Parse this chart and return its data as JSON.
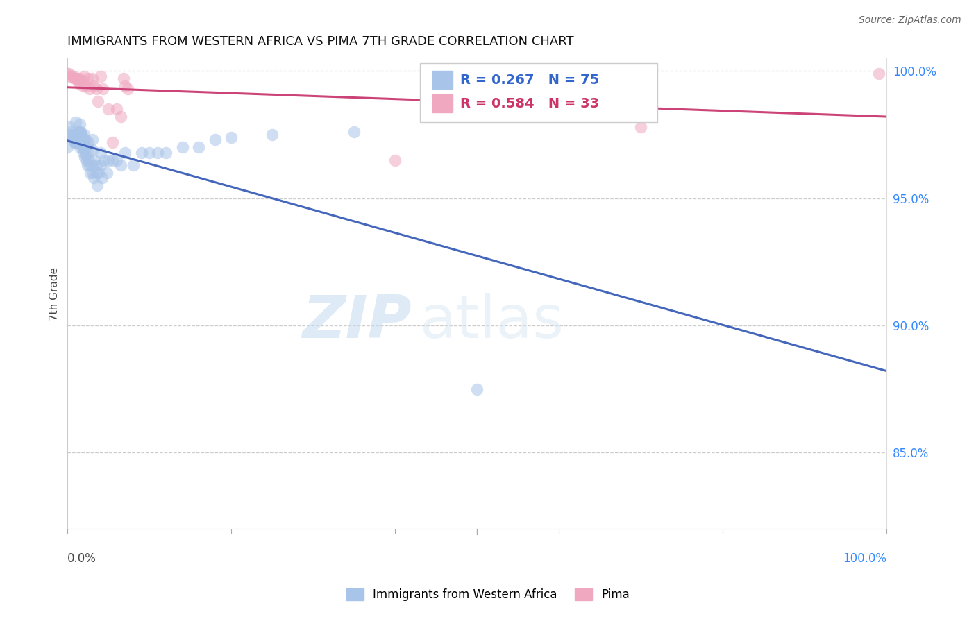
{
  "title": "IMMIGRANTS FROM WESTERN AFRICA VS PIMA 7TH GRADE CORRELATION CHART",
  "source": "Source: ZipAtlas.com",
  "ylabel": "7th Grade",
  "legend_label1": "Immigrants from Western Africa",
  "legend_label2": "Pima",
  "r1": 0.267,
  "n1": 75,
  "r2": 0.584,
  "n2": 33,
  "ytick_labels": [
    "100.0%",
    "95.0%",
    "90.0%",
    "85.0%"
  ],
  "ytick_positions": [
    1.0,
    0.95,
    0.9,
    0.85
  ],
  "blue_x": [
    0.0,
    0.002,
    0.003,
    0.004,
    0.005,
    0.006,
    0.007,
    0.008,
    0.008,
    0.009,
    0.01,
    0.01,
    0.011,
    0.012,
    0.012,
    0.013,
    0.013,
    0.014,
    0.015,
    0.015,
    0.015,
    0.016,
    0.016,
    0.017,
    0.017,
    0.018,
    0.018,
    0.018,
    0.019,
    0.02,
    0.02,
    0.02,
    0.021,
    0.022,
    0.022,
    0.022,
    0.023,
    0.024,
    0.025,
    0.025,
    0.026,
    0.027,
    0.028,
    0.03,
    0.03,
    0.03,
    0.031,
    0.032,
    0.033,
    0.035,
    0.035,
    0.036,
    0.038,
    0.04,
    0.04,
    0.042,
    0.045,
    0.048,
    0.05,
    0.055,
    0.06,
    0.065,
    0.07,
    0.08,
    0.09,
    0.1,
    0.11,
    0.12,
    0.14,
    0.16,
    0.18,
    0.2,
    0.25,
    0.35,
    0.5
  ],
  "blue_y": [
    0.97,
    0.978,
    0.975,
    0.976,
    0.974,
    0.975,
    0.973,
    0.972,
    0.974,
    0.972,
    0.98,
    0.975,
    0.972,
    0.975,
    0.972,
    0.976,
    0.974,
    0.973,
    0.979,
    0.976,
    0.97,
    0.976,
    0.973,
    0.975,
    0.972,
    0.974,
    0.972,
    0.97,
    0.968,
    0.975,
    0.972,
    0.969,
    0.966,
    0.973,
    0.97,
    0.967,
    0.965,
    0.963,
    0.972,
    0.968,
    0.965,
    0.963,
    0.96,
    0.973,
    0.969,
    0.963,
    0.96,
    0.958,
    0.965,
    0.963,
    0.96,
    0.955,
    0.96,
    0.968,
    0.963,
    0.958,
    0.965,
    0.96,
    0.965,
    0.965,
    0.965,
    0.963,
    0.968,
    0.963,
    0.968,
    0.968,
    0.968,
    0.968,
    0.97,
    0.97,
    0.973,
    0.974,
    0.975,
    0.976,
    0.875
  ],
  "pink_x": [
    0.0,
    0.001,
    0.003,
    0.005,
    0.007,
    0.009,
    0.01,
    0.012,
    0.013,
    0.015,
    0.015,
    0.018,
    0.019,
    0.02,
    0.022,
    0.025,
    0.027,
    0.03,
    0.032,
    0.035,
    0.037,
    0.04,
    0.043,
    0.05,
    0.055,
    0.06,
    0.065,
    0.068,
    0.07,
    0.073,
    0.4,
    0.7,
    0.99
  ],
  "pink_y": [
    0.999,
    0.999,
    0.998,
    0.998,
    0.998,
    0.997,
    0.997,
    0.997,
    0.996,
    0.997,
    0.995,
    0.996,
    0.994,
    0.998,
    0.994,
    0.997,
    0.993,
    0.997,
    0.994,
    0.993,
    0.988,
    0.998,
    0.993,
    0.985,
    0.972,
    0.985,
    0.982,
    0.997,
    0.994,
    0.993,
    0.965,
    0.978,
    0.999
  ],
  "blue_color": "#a8c4e8",
  "pink_color": "#f0a8c0",
  "blue_line_color": "#4466bb",
  "pink_line_color": "#cc4477",
  "watermark_zip": "ZIP",
  "watermark_atlas": "atlas",
  "background_color": "#ffffff",
  "xlim": [
    0.0,
    1.0
  ],
  "ylim": [
    0.82,
    1.005
  ],
  "xtick_positions": [
    0.0,
    0.2,
    0.4,
    0.5,
    0.6,
    0.8,
    1.0
  ]
}
